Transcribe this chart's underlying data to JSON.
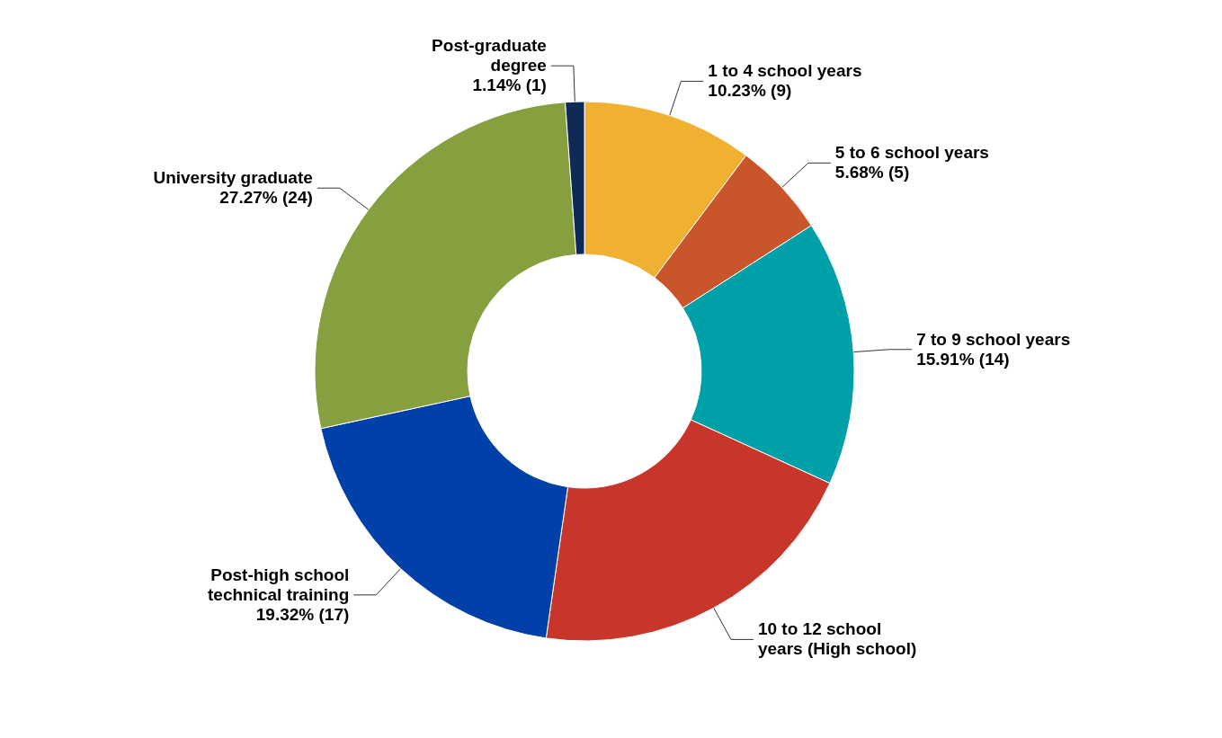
{
  "chart_data": {
    "type": "donut",
    "categories": [
      "1 to 4 school years",
      "5 to 6 school years",
      "7 to 9 school years",
      "10 to 12 school\nyears (High school)",
      "Post-high school\ntechnical training",
      "University graduate",
      "Post-graduate\ndegree"
    ],
    "values": [
      9,
      5,
      14,
      18,
      17,
      24,
      1
    ],
    "value_labels": [
      "10.23% (9)",
      "5.68% (5)",
      "15.91% (14)",
      null,
      "19.32% (17)",
      "27.27% (24)",
      "1.14% (1)"
    ],
    "colors": [
      "#f0b030",
      "#c8562a",
      "#00a0a8",
      "#c8352a",
      "#0040a8",
      "#86a040",
      "#0f2a55"
    ]
  }
}
